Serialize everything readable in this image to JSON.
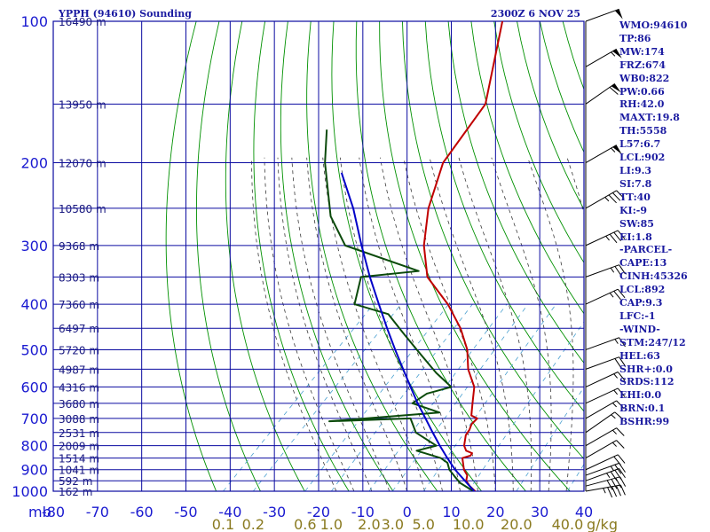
{
  "chart_data": {
    "type": "line",
    "title": "YPPH (94610) Sounding",
    "time_label": "2300Z  6 NOV 25",
    "y_unit_label": "mb",
    "mixing_unit_label": "g/kg",
    "skew_deg": 45,
    "xlim": [
      -80,
      40
    ],
    "ylim": [
      1000,
      100
    ],
    "y_scale": "log",
    "pressure_ticks": [
      100,
      200,
      300,
      400,
      500,
      600,
      700,
      800,
      900,
      1000
    ],
    "temp_ticks": [
      -80,
      -70,
      -60,
      -50,
      -40,
      -30,
      -20,
      -10,
      0,
      10,
      20,
      30,
      40
    ],
    "height_labels": [
      {
        "p": 100,
        "label": "16490 m"
      },
      {
        "p": 150,
        "label": "13950 m"
      },
      {
        "p": 200,
        "label": "12070 m"
      },
      {
        "p": 250,
        "label": "10580 m"
      },
      {
        "p": 300,
        "label": "9368 m"
      },
      {
        "p": 350,
        "label": "8303 m"
      },
      {
        "p": 400,
        "label": "7360 m"
      },
      {
        "p": 450,
        "label": "6497 m"
      },
      {
        "p": 500,
        "label": "5720 m"
      },
      {
        "p": 550,
        "label": "4987 m"
      },
      {
        "p": 600,
        "label": "4316 m"
      },
      {
        "p": 650,
        "label": "3680 m"
      },
      {
        "p": 700,
        "label": "3088 m"
      },
      {
        "p": 750,
        "label": "2531 m"
      },
      {
        "p": 800,
        "label": "2009 m"
      },
      {
        "p": 850,
        "label": "1514 m"
      },
      {
        "p": 900,
        "label": "1041 m"
      },
      {
        "p": 950,
        "label": "592 m"
      },
      {
        "p": 1000,
        "label": "162 m"
      }
    ],
    "mixing_ratio_labels": [
      {
        "value": 0.1,
        "label": "0.1"
      },
      {
        "value": 0.2,
        "label": "0.2"
      },
      {
        "value": 0.6,
        "label": "0.6"
      },
      {
        "value": 1.0,
        "label": "1.0"
      },
      {
        "value": 2.0,
        "label": "2.0"
      },
      {
        "value": 3.0,
        "label": "3.0"
      },
      {
        "value": 5.0,
        "label": "5.0"
      },
      {
        "value": 10.0,
        "label": "10.0"
      },
      {
        "value": 20.0,
        "label": "20.0"
      },
      {
        "value": 40.0,
        "label": "40.0"
      }
    ],
    "series": [
      {
        "kind": "temperature",
        "color": "#c00000",
        "points": [
          [
            1000,
            15.4
          ],
          [
            975,
            13.0
          ],
          [
            950,
            11.0
          ],
          [
            925,
            10.0
          ],
          [
            900,
            8.0
          ],
          [
            850,
            5.0
          ],
          [
            840,
            6.3
          ],
          [
            830,
            6.1
          ],
          [
            820,
            4.2
          ],
          [
            800,
            2.6
          ],
          [
            760,
            0.6
          ],
          [
            740,
            0.2
          ],
          [
            720,
            -0.6
          ],
          [
            700,
            -0.6
          ],
          [
            690,
            -2.6
          ],
          [
            650,
            -5.1
          ],
          [
            600,
            -8.4
          ],
          [
            550,
            -13.8
          ],
          [
            500,
            -18.4
          ],
          [
            450,
            -24.8
          ],
          [
            400,
            -33.1
          ],
          [
            350,
            -43.9
          ],
          [
            300,
            -51.8
          ],
          [
            250,
            -59.2
          ],
          [
            200,
            -66.2
          ],
          [
            150,
            -69.9
          ],
          [
            100,
            -84.8
          ]
        ]
      },
      {
        "kind": "dewpoint",
        "color": "#0b4a0b",
        "points": [
          [
            1000,
            15.0
          ],
          [
            960,
            10.1
          ],
          [
            930,
            7.4
          ],
          [
            900,
            4.7
          ],
          [
            870,
            2.7
          ],
          [
            850,
            0.1
          ],
          [
            820,
            -7.0
          ],
          [
            800,
            -3.7
          ],
          [
            750,
            -11.3
          ],
          [
            700,
            -15.7
          ],
          [
            710,
            -33.4
          ],
          [
            680,
            -10.5
          ],
          [
            650,
            -18.7
          ],
          [
            620,
            -17.6
          ],
          [
            600,
            -13.6
          ],
          [
            560,
            -20.2
          ],
          [
            500,
            -29.8
          ],
          [
            460,
            -36.8
          ],
          [
            420,
            -44.3
          ],
          [
            400,
            -54.2
          ],
          [
            350,
            -58.9
          ],
          [
            340,
            -47.2
          ],
          [
            300,
            -69.6
          ],
          [
            260,
            -79.5
          ],
          [
            200,
            -92.9
          ],
          [
            170,
            -100.0
          ]
        ]
      },
      {
        "kind": "parcel",
        "color": "#0000c8",
        "points": [
          [
            1000,
            15.2
          ],
          [
            950,
            10.7
          ],
          [
            900,
            6.0
          ],
          [
            850,
            1.6
          ],
          [
            800,
            -2.9
          ],
          [
            750,
            -7.5
          ],
          [
            700,
            -12.3
          ],
          [
            650,
            -17.5
          ],
          [
            600,
            -22.8
          ],
          [
            550,
            -28.5
          ],
          [
            500,
            -34.7
          ],
          [
            450,
            -41.4
          ],
          [
            400,
            -48.7
          ],
          [
            350,
            -56.9
          ],
          [
            300,
            -65.9
          ],
          [
            250,
            -76.2
          ],
          [
            210,
            -86.9
          ]
        ]
      }
    ],
    "wind_barbs": [
      {
        "p": 1000,
        "dir": 260,
        "kt": 45
      },
      {
        "p": 975,
        "dir": 255,
        "kt": 40
      },
      {
        "p": 950,
        "dir": 250,
        "kt": 35
      },
      {
        "p": 925,
        "dir": 250,
        "kt": 25
      },
      {
        "p": 900,
        "dir": 245,
        "kt": 20
      },
      {
        "p": 850,
        "dir": 240,
        "kt": 15
      },
      {
        "p": 800,
        "dir": 240,
        "kt": 15
      },
      {
        "p": 750,
        "dir": 235,
        "kt": 15
      },
      {
        "p": 700,
        "dir": 240,
        "kt": 15
      },
      {
        "p": 650,
        "dir": 245,
        "kt": 15
      },
      {
        "p": 600,
        "dir": 245,
        "kt": 15
      },
      {
        "p": 550,
        "dir": 250,
        "kt": 20
      },
      {
        "p": 500,
        "dir": 250,
        "kt": 15
      },
      {
        "p": 400,
        "dir": 245,
        "kt": 25
      },
      {
        "p": 350,
        "dir": 250,
        "kt": 25
      },
      {
        "p": 300,
        "dir": 245,
        "kt": 35
      },
      {
        "p": 250,
        "dir": 240,
        "kt": 35
      },
      {
        "p": 200,
        "dir": 240,
        "kt": 55
      },
      {
        "p": 150,
        "dir": 235,
        "kt": 60
      },
      {
        "p": 125,
        "dir": 240,
        "kt": 55
      },
      {
        "p": 100,
        "dir": 250,
        "kt": 50
      }
    ],
    "colors": {
      "grid": "#0a0aa0",
      "dry_adiabat": "#009000",
      "moist_adiabat": "#3a3a3a",
      "mixing_ratio": "#4aa0d0",
      "axis_text": "#1a1ad0",
      "mixing_text": "#8a7a20",
      "barb": "#000000"
    }
  },
  "stats": [
    "WMO:94610",
    "TP:86",
    "MW:174",
    "FRZ:674",
    "WB0:822",
    "PW:0.66",
    "RH:42.0",
    "MAXT:19.8",
    "TH:5558",
    "L57:6.7",
    "LCL:902",
    "LI:9.3",
    "SI:7.8",
    "TT:40",
    "KI:-9",
    "SW:85",
    "EI:1.8",
    "-PARCEL-",
    "CAPE:13",
    "CINH:45326",
    "LCL:892",
    "CAP:9.3",
    "LFC:-1",
    "-WIND-",
    "STM:247/12",
    "HEL:63",
    "SHR+:0.0",
    "SRDS:112",
    "EHI:0.0",
    "BRN:0.1",
    "BSHR:99"
  ]
}
